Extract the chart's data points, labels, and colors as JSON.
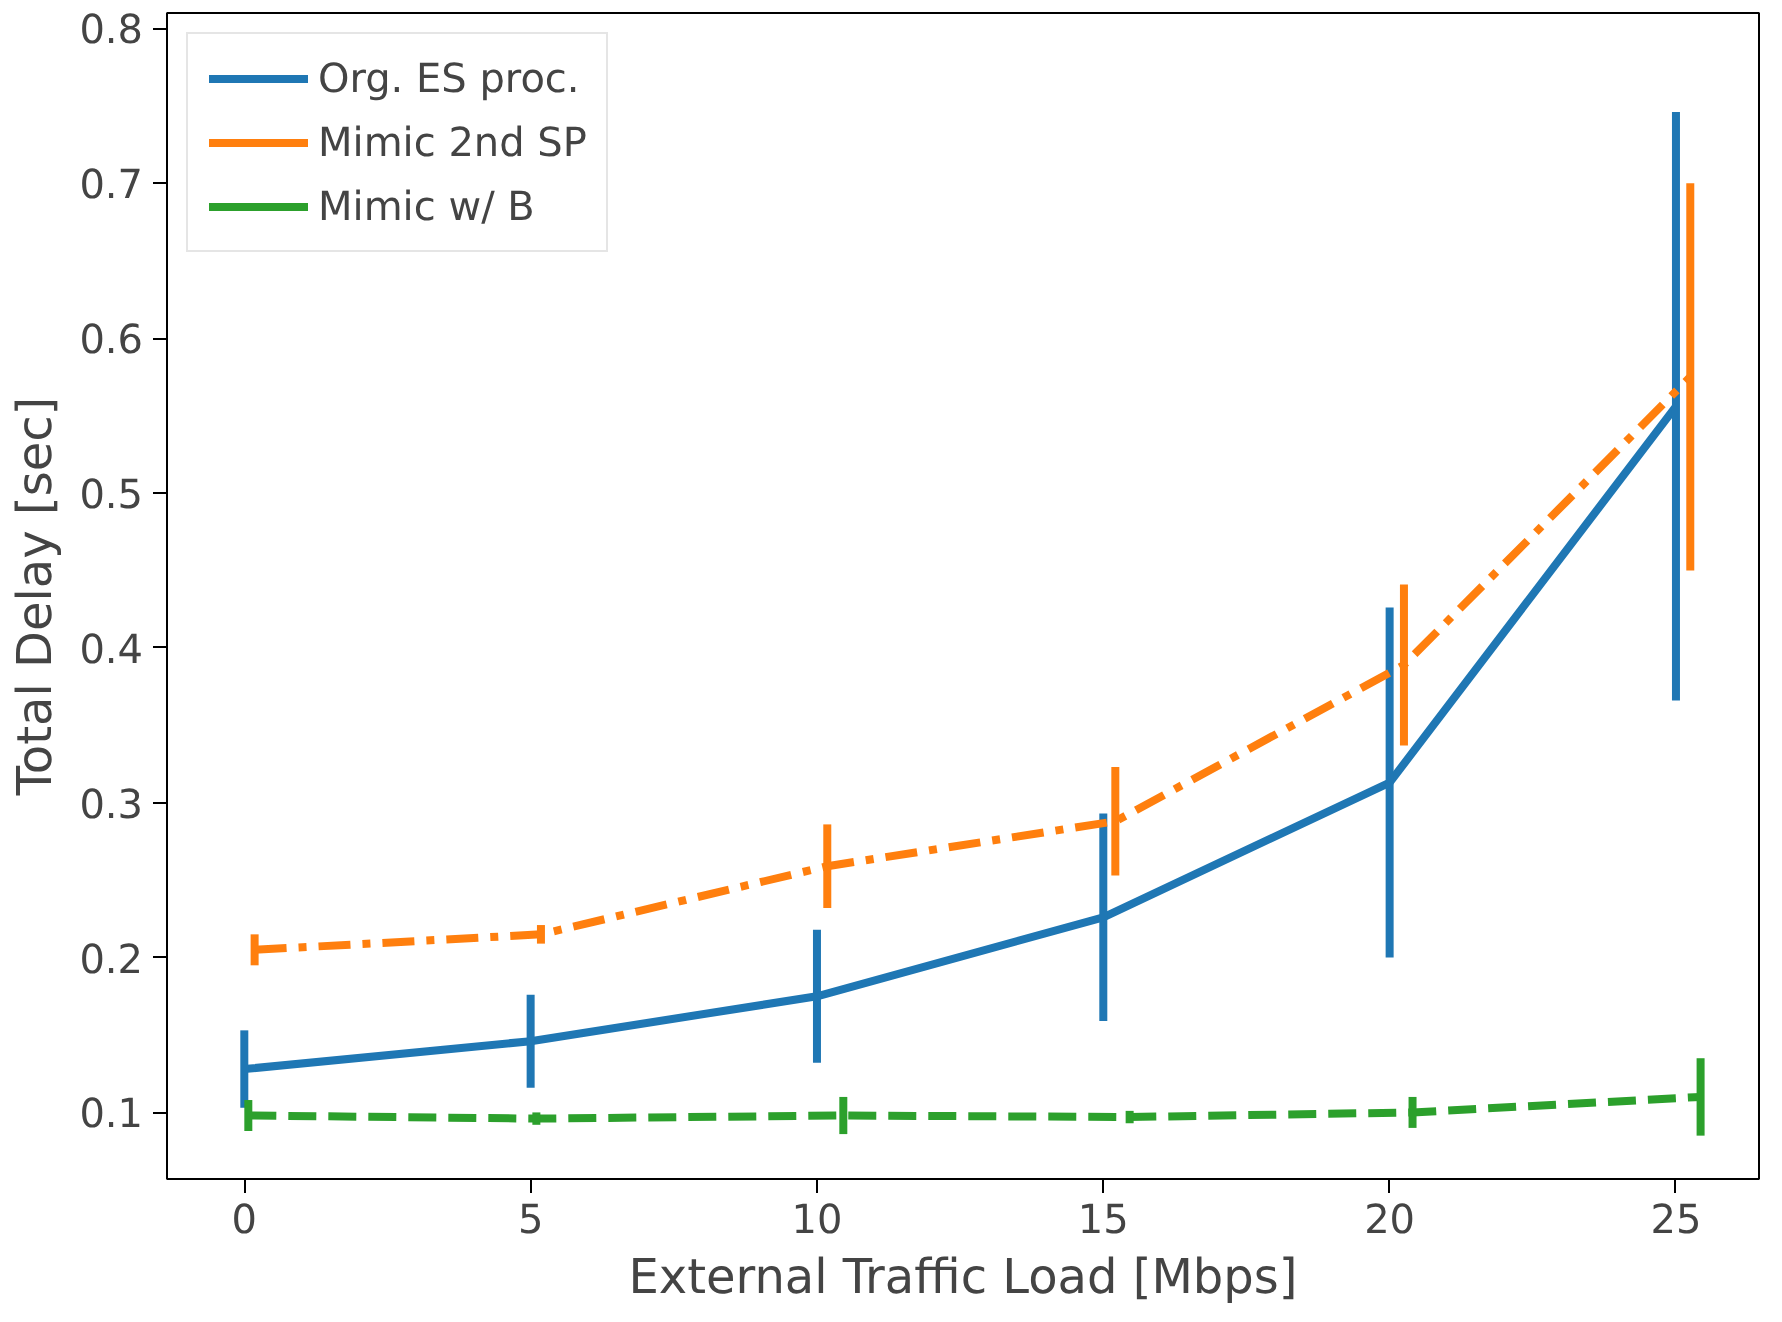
{
  "chart_data": {
    "type": "line",
    "xlabel": "External Traffic Load [Mbps]",
    "ylabel": "Total Delay [sec]",
    "xlim": [
      -1.35,
      26.45
    ],
    "ylim": [
      0.057,
      0.81
    ],
    "xticks": [
      0,
      5,
      10,
      15,
      20,
      25
    ],
    "yticks": [
      0.1,
      0.2,
      0.3,
      0.4,
      0.5,
      0.6,
      0.7,
      0.8
    ],
    "grid": false,
    "legend": "top left",
    "marker": "none",
    "series": [
      {
        "name": "Org. ES proc.",
        "color": "#1f77b4",
        "line_style": "solid",
        "x": [
          0,
          5,
          10,
          15,
          20,
          25
        ],
        "values": [
          0.128,
          0.146,
          0.175,
          0.226,
          0.313,
          0.556
        ],
        "errors": [
          0.025,
          0.03,
          0.043,
          0.067,
          0.113,
          0.19
        ]
      },
      {
        "name": "Mimic 2nd SP",
        "color": "#ff7f0e",
        "line_style": "dashdot",
        "x": [
          0.18,
          5.18,
          10.18,
          15.21,
          20.25,
          25.25
        ],
        "values": [
          0.205,
          0.215,
          0.259,
          0.288,
          0.389,
          0.575
        ],
        "errors": [
          0.01,
          0.006,
          0.027,
          0.035,
          0.052,
          0.125
        ]
      },
      {
        "name": "Mimic w/ B",
        "color": "#2ca02c",
        "line_style": "dashed",
        "x": [
          0.07,
          5.1,
          10.46,
          15.46,
          20.4,
          25.43
        ],
        "values": [
          0.098,
          0.096,
          0.098,
          0.097,
          0.1,
          0.11
        ],
        "errors": [
          0.01,
          0.004,
          0.012,
          0.004,
          0.01,
          0.025
        ]
      }
    ]
  }
}
